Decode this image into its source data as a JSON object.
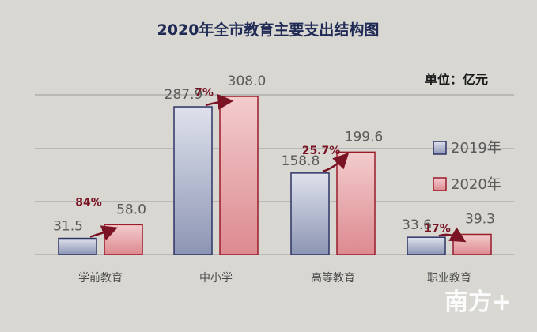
{
  "chart_data": {
    "type": "bar",
    "title": "2020年全市教育主要支出结构图",
    "unit_label": "单位：亿元",
    "categories": [
      "学前教育",
      "中小学",
      "高等教育",
      "职业教育"
    ],
    "series": [
      {
        "name": "2019年",
        "values": [
          31.5,
          287.9,
          158.8,
          33.6
        ],
        "labels": [
          "31.5",
          "287.9",
          "158.8",
          "33.6"
        ],
        "color": "#9aa3be"
      },
      {
        "name": "2020年",
        "values": [
          58.0,
          308.0,
          199.6,
          39.3
        ],
        "labels": [
          "58.0",
          "308.0",
          "199.6",
          "39.3"
        ],
        "color": "#e6a0a4"
      }
    ],
    "growth_labels": [
      "84%",
      "7%",
      "25.7%",
      "17%"
    ],
    "ylim": [
      0,
      350
    ],
    "grid": true,
    "legend": "right",
    "arrow_color": "#7a1424"
  },
  "watermark": "南方+"
}
